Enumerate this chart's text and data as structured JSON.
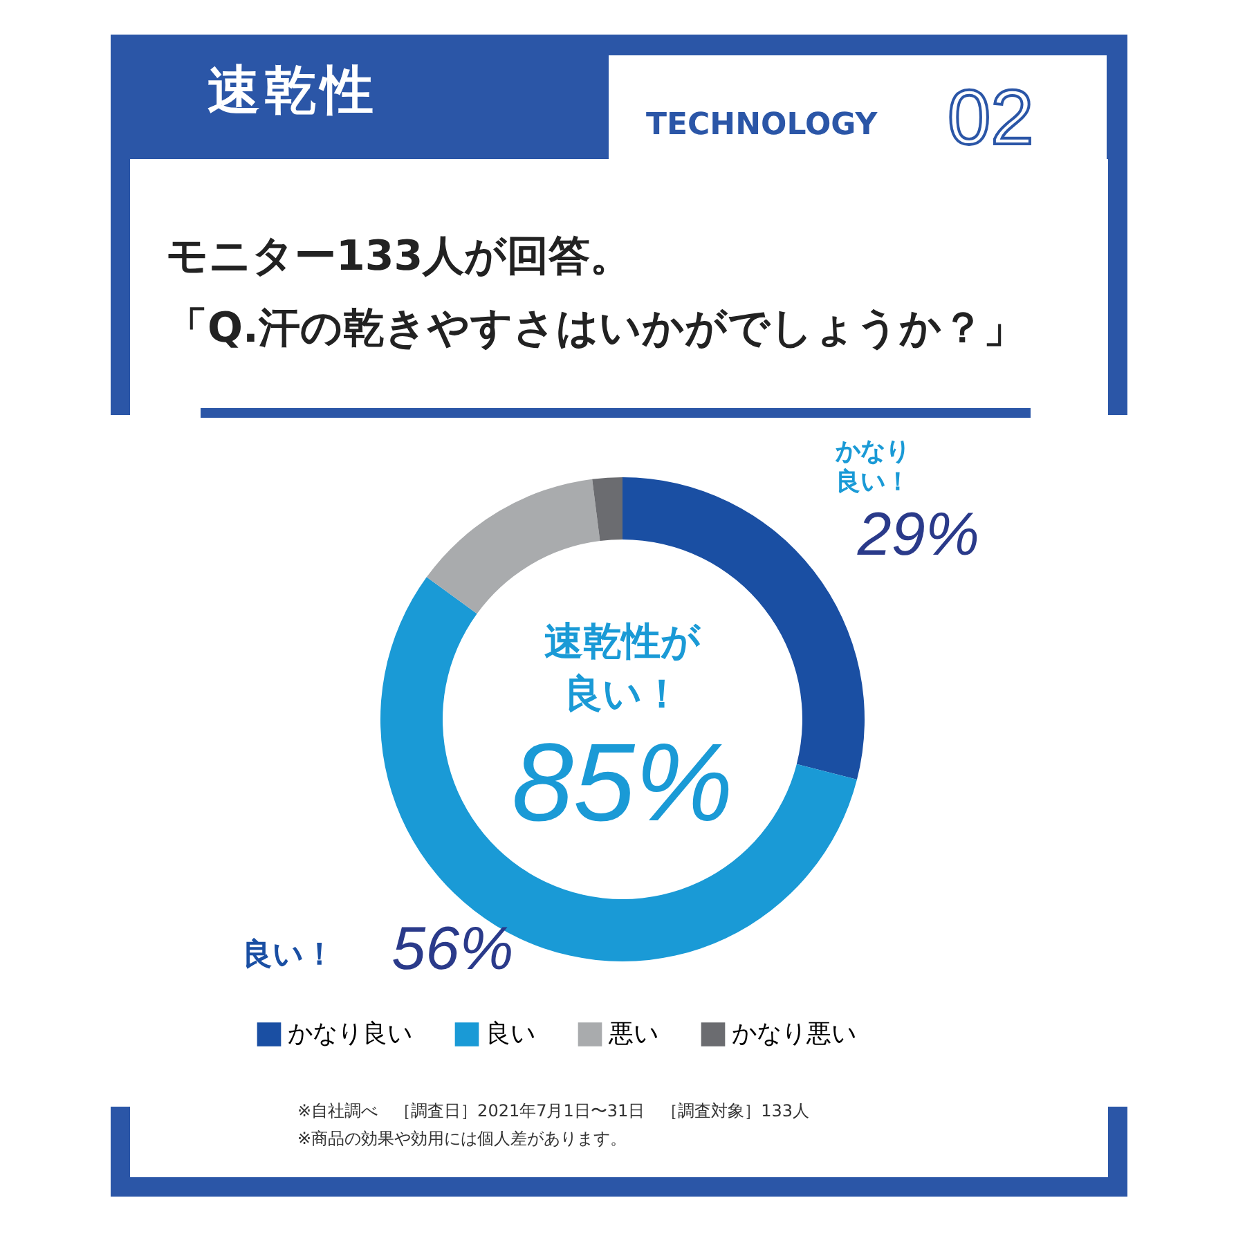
{
  "chart_data": {
    "type": "donut",
    "title": "速乾性",
    "subtitle": "モニター133人が回答。",
    "categories": [
      "かなり良い",
      "良い",
      "悪い",
      "かなり悪い"
    ],
    "values": [
      29,
      56,
      13,
      2
    ],
    "colors": [
      "#1a4fa3",
      "#1a9ad6",
      "#a9abad",
      "#6b6c70"
    ],
    "value_labels": [
      "29%",
      "56%",
      null,
      null
    ],
    "legend": "bottom",
    "annotations": [
      "TECHNOLOGY",
      "02",
      "「Q.汗の乾きやすさはいかがでしょうか？」",
      "かなり良い！",
      "良い！",
      "速乾性が良い！",
      "85%",
      "※自社調べ　［調査日］2021年7月1日〜31日　［調査対象］133人",
      "※商品の効果や効用には個人差があります。"
    ]
  }
}
